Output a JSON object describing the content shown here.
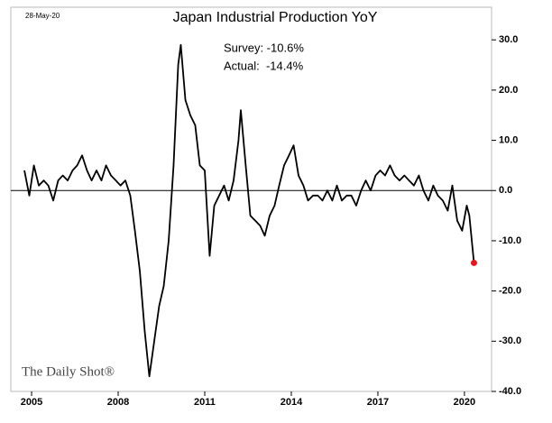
{
  "chart_data": {
    "type": "line",
    "title": "Japan Industrial Production YoY",
    "date_note": "28-May-20",
    "annotations": [
      "Survey: -10.6%",
      "Actual:  -14.4%"
    ],
    "watermark": "The Daily Shot®",
    "x": [
      2004.75,
      2004.92,
      2005.08,
      2005.25,
      2005.42,
      2005.58,
      2005.75,
      2005.92,
      2006.08,
      2006.25,
      2006.42,
      2006.58,
      2006.75,
      2006.92,
      2007.08,
      2007.25,
      2007.42,
      2007.58,
      2007.75,
      2007.92,
      2008.08,
      2008.25,
      2008.42,
      2008.58,
      2008.75,
      2008.92,
      2009.08,
      2009.25,
      2009.42,
      2009.58,
      2009.75,
      2009.92,
      2010.08,
      2010.17,
      2010.33,
      2010.5,
      2010.67,
      2010.83,
      2011.0,
      2011.17,
      2011.33,
      2011.5,
      2011.67,
      2011.83,
      2012.0,
      2012.17,
      2012.25,
      2012.42,
      2012.58,
      2012.75,
      2012.92,
      2013.08,
      2013.25,
      2013.42,
      2013.58,
      2013.75,
      2013.92,
      2014.08,
      2014.25,
      2014.42,
      2014.58,
      2014.75,
      2014.92,
      2015.08,
      2015.25,
      2015.42,
      2015.58,
      2015.75,
      2015.92,
      2016.08,
      2016.25,
      2016.42,
      2016.58,
      2016.75,
      2016.92,
      2017.08,
      2017.25,
      2017.42,
      2017.58,
      2017.75,
      2017.92,
      2018.08,
      2018.25,
      2018.42,
      2018.58,
      2018.75,
      2018.92,
      2019.08,
      2019.25,
      2019.42,
      2019.58,
      2019.75,
      2019.92,
      2020.08,
      2020.17,
      2020.33
    ],
    "series": [
      {
        "name": "Japan Industrial Production YoY",
        "color": "#000000",
        "highlight_color": "#e8151b",
        "values": [
          4,
          -1,
          5,
          1,
          2,
          1,
          -2,
          2,
          3,
          2,
          4,
          5,
          7,
          4,
          2,
          4,
          2,
          5,
          3,
          2,
          1,
          2,
          -1,
          -8,
          -16,
          -28,
          -37,
          -30,
          -23,
          -19,
          -10,
          5,
          25,
          29,
          18,
          15,
          13,
          5,
          4,
          -13,
          -3,
          -1,
          1,
          -2,
          2,
          10,
          16,
          5,
          -5,
          -6,
          -7,
          -9,
          -5,
          -3,
          1,
          5,
          7,
          9,
          3,
          1,
          -2,
          -1,
          -1,
          -2,
          0,
          -2,
          1,
          -2,
          -1,
          -1,
          -3,
          0,
          2,
          0,
          3,
          4,
          3,
          5,
          3,
          2,
          3,
          2,
          1,
          3,
          0,
          -2,
          1,
          -1,
          -2,
          -4,
          1,
          -6,
          -8,
          -3,
          -5,
          -14.4
        ]
      }
    ],
    "xlim": [
      2004.28,
      2020.94
    ],
    "xticks": [
      2005,
      2008,
      2011,
      2014,
      2017,
      2020
    ],
    "ylim": [
      -40,
      36.5
    ],
    "yticks": [
      {
        "value": 30,
        "label": "30.0"
      },
      {
        "value": 20,
        "label": "20.0"
      },
      {
        "value": 10,
        "label": "10.0"
      },
      {
        "value": 0,
        "label": "0.0"
      },
      {
        "value": -10,
        "label": "-10.0"
      },
      {
        "value": -20,
        "label": "-20.0"
      },
      {
        "value": -30,
        "label": "-30.0"
      },
      {
        "value": -40,
        "label": "-40.0"
      }
    ],
    "zero_line": true
  }
}
